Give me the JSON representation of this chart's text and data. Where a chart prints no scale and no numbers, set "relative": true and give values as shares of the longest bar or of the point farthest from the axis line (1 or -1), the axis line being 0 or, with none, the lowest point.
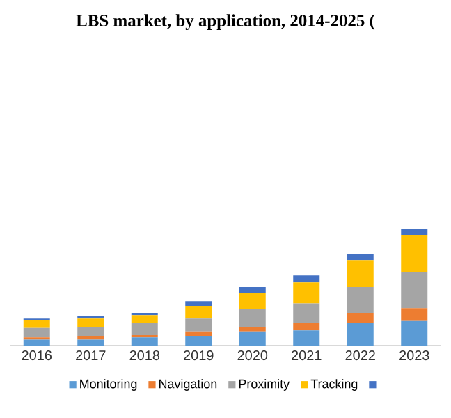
{
  "chart_data": {
    "type": "bar",
    "title": "LBS market, by application, 2014-2025 (",
    "categories": [
      "2016",
      "2017",
      "2018",
      "2019",
      "2020",
      "2021",
      "2022",
      "2023"
    ],
    "stacked": true,
    "relative": true,
    "legend": "bottom",
    "series": [
      {
        "name": "Monitoring",
        "color": "#5b9bd5",
        "values": [
          0.05,
          0.05,
          0.07,
          0.08,
          0.12,
          0.13,
          0.19,
          0.21
        ]
      },
      {
        "name": "Navigation",
        "color": "#ed7d31",
        "values": [
          0.02,
          0.03,
          0.02,
          0.04,
          0.04,
          0.06,
          0.09,
          0.11
        ]
      },
      {
        "name": "Proximity",
        "color": "#a5a5a5",
        "values": [
          0.08,
          0.08,
          0.1,
          0.11,
          0.15,
          0.17,
          0.22,
          0.31
        ]
      },
      {
        "name": "Tracking",
        "color": "#ffc000",
        "values": [
          0.07,
          0.07,
          0.07,
          0.11,
          0.14,
          0.18,
          0.23,
          0.31
        ]
      },
      {
        "color": "#4472c4",
        "values": [
          0.01,
          0.02,
          0.02,
          0.04,
          0.05,
          0.06,
          0.05,
          0.06
        ]
      }
    ]
  }
}
